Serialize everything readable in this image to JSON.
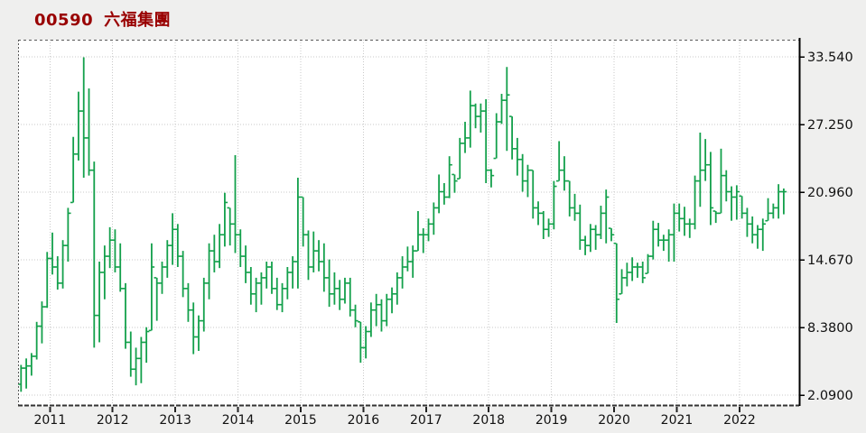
{
  "title": {
    "code": "00590",
    "name": "六福集團"
  },
  "colors": {
    "title_text": "#990000",
    "bar": "#13A04B",
    "grid": "#c9c9c9",
    "axis_text": "#111111",
    "plot_bg": "#ffffff",
    "page_bg": "#efefee",
    "axis_line": "#000000",
    "dashed_border": "#5a5a5a"
  },
  "y_axis": {
    "labels": [
      "33.540",
      "27.250",
      "20.960",
      "14.670",
      "8.3800",
      "2.0900"
    ],
    "values": [
      33.54,
      27.25,
      20.96,
      14.67,
      8.38,
      2.09
    ]
  },
  "x_axis": {
    "years": [
      "2011",
      "2012",
      "2013",
      "2014",
      "2015",
      "2016",
      "2017",
      "2018",
      "2019",
      "2020",
      "2021",
      "2022"
    ]
  },
  "chart_data": {
    "type": "bar",
    "subtype": "ohlc-bar-series",
    "symbol": "00590",
    "series_name": "六福集團",
    "start_month": "2010-08",
    "interval": "monthly",
    "ylim": [
      1.2,
      35.1
    ],
    "y_ticks": [
      33.54,
      27.25,
      20.96,
      14.67,
      8.38,
      2.09
    ],
    "x_tick_years": [
      2011,
      2012,
      2013,
      2014,
      2015,
      2016,
      2017,
      2018,
      2019,
      2020,
      2021,
      2022
    ],
    "grid": true,
    "high": [
      4.9,
      5.5,
      6.0,
      8.9,
      10.8,
      15.4,
      17.2,
      15.0,
      16.5,
      19.5,
      26.1,
      30.3,
      33.5,
      30.6,
      23.8,
      14.5,
      16.0,
      17.7,
      17.5,
      16.2,
      12.5,
      8.0,
      6.5,
      7.5,
      8.4,
      16.2,
      13.0,
      14.5,
      16.5,
      19.0,
      18.0,
      15.5,
      12.5,
      10.7,
      9.5,
      13.0,
      16.2,
      17.0,
      18.0,
      20.9,
      19.5,
      24.4,
      17.5,
      16.0,
      14.0,
      13.0,
      13.5,
      14.5,
      14.5,
      13.0,
      12.5,
      14.0,
      15.0,
      22.3,
      20.5,
      17.4,
      17.3,
      16.5,
      16.2,
      14.7,
      13.5,
      12.8,
      13.0,
      13.0,
      10.5,
      8.9,
      8.5,
      10.7,
      11.5,
      11.0,
      11.5,
      12.1,
      13.5,
      15.0,
      15.9,
      16.0,
      19.2,
      17.6,
      18.5,
      20.0,
      22.6,
      21.8,
      24.3,
      22.6,
      26.0,
      27.5,
      30.4,
      29.2,
      29.2,
      29.6,
      23.1,
      28.3,
      30.1,
      32.6,
      28.0,
      26.0,
      24.5,
      23.5,
      23.0,
      20.1,
      19.2,
      18.5,
      22.0,
      25.7,
      24.3,
      22.0,
      20.8,
      19.8,
      16.9,
      18.0,
      17.9,
      19.7,
      21.2,
      17.6,
      16.2,
      13.8,
      14.4,
      14.9,
      14.4,
      14.5,
      15.2,
      18.3,
      18.1,
      17.0,
      17.5,
      19.9,
      19.9,
      19.6,
      18.5,
      22.5,
      26.5,
      25.9,
      24.7,
      19.2,
      25.0,
      23.0,
      21.5,
      21.6,
      20.6,
      19.5,
      18.7,
      17.9,
      18.5,
      20.4,
      19.9,
      21.7,
      21.3
    ],
    "low": [
      2.4,
      2.7,
      3.9,
      5.4,
      6.9,
      10.2,
      13.3,
      11.9,
      12.0,
      14.5,
      20.0,
      23.9,
      22.3,
      22.5,
      6.5,
      7.0,
      11.0,
      13.9,
      13.5,
      11.7,
      6.4,
      3.8,
      3.0,
      3.2,
      5.1,
      8.1,
      9.0,
      11.5,
      13.0,
      14.2,
      14.0,
      11.2,
      8.9,
      5.9,
      6.2,
      8.0,
      11.0,
      13.5,
      13.9,
      15.9,
      16.0,
      15.3,
      14.0,
      12.5,
      10.5,
      9.8,
      10.5,
      12.0,
      11.5,
      10.0,
      9.8,
      11.0,
      12.0,
      12.0,
      15.9,
      12.8,
      13.5,
      13.6,
      11.7,
      10.3,
      10.5,
      10.0,
      10.6,
      9.4,
      8.4,
      5.1,
      5.5,
      7.5,
      8.5,
      8.0,
      8.5,
      9.7,
      10.5,
      12.0,
      13.6,
      13.0,
      15.5,
      15.3,
      16.4,
      17.0,
      19.0,
      19.8,
      20.4,
      20.9,
      22.2,
      24.6,
      25.1,
      26.9,
      26.5,
      21.8,
      21.4,
      24.1,
      27.3,
      24.8,
      24.0,
      22.5,
      21.0,
      20.5,
      18.5,
      17.9,
      16.6,
      16.8,
      17.5,
      22.0,
      21.1,
      18.7,
      18.3,
      15.6,
      15.1,
      15.4,
      15.6,
      16.6,
      16.2,
      16.4,
      8.8,
      11.5,
      12.2,
      12.7,
      13.0,
      12.5,
      13.4,
      14.7,
      15.9,
      15.5,
      14.5,
      14.5,
      17.3,
      16.9,
      16.7,
      17.5,
      19.6,
      22.0,
      17.9,
      18.1,
      19.0,
      20.1,
      18.3,
      18.4,
      18.5,
      16.8,
      16.2,
      15.7,
      15.5,
      18.3,
      18.5,
      18.5,
      18.9
    ],
    "close": [
      4.6,
      4.8,
      5.7,
      8.5,
      10.3,
      14.8,
      14.0,
      12.5,
      16.0,
      19.0,
      24.5,
      28.5,
      26.0,
      23.0,
      9.5,
      13.5,
      15.0,
      16.5,
      14.0,
      12.0,
      7.0,
      4.5,
      5.5,
      7.0,
      8.0,
      14.0,
      12.5,
      14.0,
      16.0,
      17.5,
      15.0,
      12.0,
      10.0,
      7.5,
      9.0,
      12.5,
      15.5,
      14.5,
      17.0,
      20.0,
      18.0,
      17.0,
      15.0,
      13.5,
      11.5,
      12.5,
      13.0,
      14.0,
      12.0,
      10.5,
      12.0,
      13.5,
      14.5,
      20.5,
      17.0,
      14.0,
      15.5,
      14.5,
      13.0,
      11.5,
      12.0,
      11.0,
      12.5,
      10.0,
      9.0,
      6.5,
      8.0,
      10.0,
      10.5,
      9.0,
      11.0,
      11.5,
      13.0,
      14.0,
      14.5,
      15.5,
      17.0,
      17.0,
      18.0,
      19.5,
      21.0,
      20.5,
      23.5,
      22.0,
      25.5,
      26.0,
      29.0,
      28.0,
      28.5,
      23.0,
      22.5,
      27.5,
      29.5,
      30.0,
      25.0,
      24.0,
      22.0,
      23.0,
      19.5,
      19.0,
      17.5,
      18.0,
      21.5,
      23.0,
      22.0,
      19.5,
      19.0,
      16.5,
      16.0,
      17.5,
      17.0,
      19.0,
      20.5,
      17.0,
      11.0,
      13.0,
      13.5,
      14.0,
      14.0,
      13.0,
      15.0,
      17.5,
      16.5,
      16.5,
      17.0,
      19.0,
      18.5,
      18.0,
      18.0,
      22.0,
      23.0,
      23.5,
      19.5,
      19.0,
      22.5,
      21.0,
      20.5,
      21.0,
      19.0,
      18.0,
      17.0,
      17.5,
      18.0,
      19.0,
      19.5,
      21.0,
      21.0
    ]
  }
}
